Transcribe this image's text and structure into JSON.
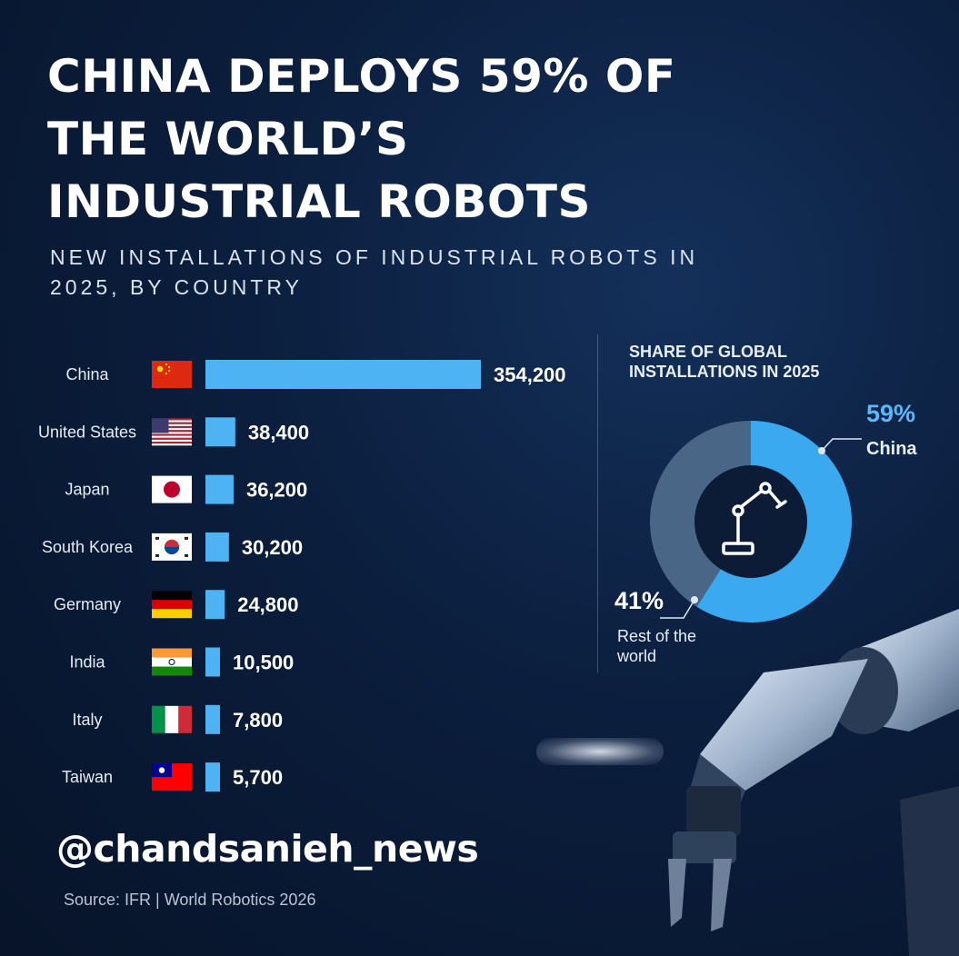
{
  "header": {
    "title": "CHINA DEPLOYS 59% OF THE WORLD’S INDUSTRIAL ROBOTS",
    "subtitle": "NEW INSTALLATIONS OF INDUSTRIAL ROBOTS IN 2025, BY COUNTRY"
  },
  "chart_data": [
    {
      "type": "bar",
      "orientation": "horizontal",
      "title": "NEW INSTALLATIONS OF INDUSTRIAL ROBOTS IN 2025, BY COUNTRY",
      "categories": [
        "China",
        "United States",
        "Japan",
        "South Korea",
        "Germany",
        "India",
        "Italy",
        "Taiwan"
      ],
      "values": [
        354200,
        38400,
        36200,
        30200,
        24800,
        10500,
        7800,
        5700
      ],
      "value_labels": [
        "354,200",
        "38,400",
        "36,200",
        "30,200",
        "24,800",
        "10,500",
        "7,800",
        "5,700"
      ],
      "flags": [
        "china-flag-icon",
        "us-flag-icon",
        "japan-flag-icon",
        "south-korea-flag-icon",
        "germany-flag-icon",
        "india-flag-icon",
        "italy-flag-icon",
        "taiwan-flag-icon"
      ],
      "bar_color": "#4db3f2",
      "xlim": [
        0,
        354200
      ],
      "grid": false
    },
    {
      "type": "pie",
      "style": "donut",
      "title": "SHARE OF GLOBAL INSTALLATIONS IN 2025",
      "slices": [
        {
          "label": "China",
          "value": 59,
          "value_label": "59%",
          "color": "#3aa9f0"
        },
        {
          "label": "Rest of the world",
          "value": 41,
          "value_label": "41%",
          "color": "#4a6686"
        }
      ],
      "center_icon": "robot-arm-icon"
    }
  ],
  "watermark": "@chandsanieh_news",
  "source": "Source: IFR | World Robotics 2026",
  "colors": {
    "accent": "#4db3f2",
    "background": "#0b1e3d"
  }
}
